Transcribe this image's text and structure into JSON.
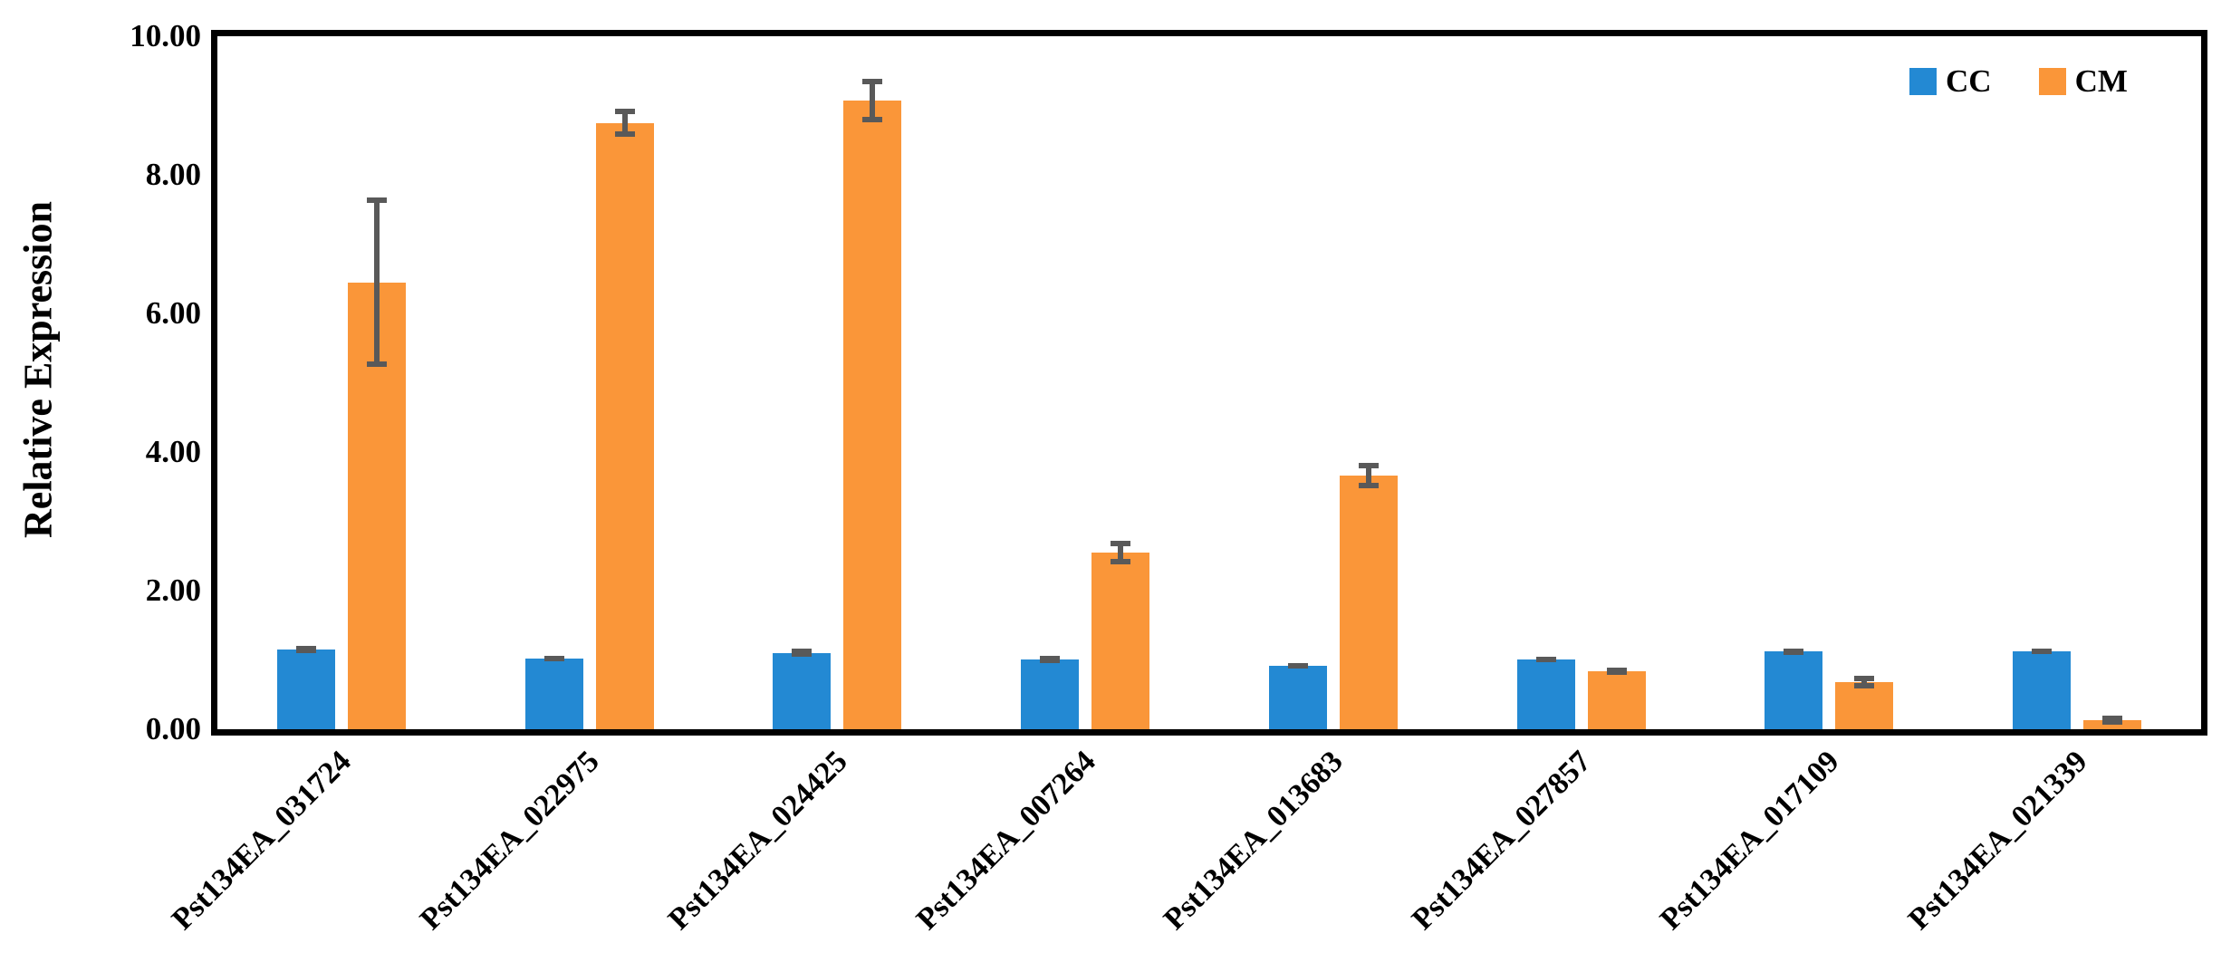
{
  "chart_data": {
    "type": "bar",
    "title": "",
    "xlabel": "",
    "ylabel": "Relative Expression",
    "ylim": [
      0,
      10
    ],
    "ytick_values": [
      0,
      2,
      4,
      6,
      8,
      10
    ],
    "ytick_labels": [
      "0.00",
      "2.00",
      "4.00",
      "6.00",
      "8.00",
      "10.00"
    ],
    "grid": false,
    "legend_position": "top-right-inside",
    "categories": [
      "Pst134EA_031724",
      "Pst134EA_022975",
      "Pst134EA_024425",
      "Pst134EA_007264",
      "Pst134EA_013683",
      "Pst134EA_027857",
      "Pst134EA_017109",
      "Pst134EA_021339"
    ],
    "series": [
      {
        "name": "CC",
        "color": "#2389D3",
        "values": [
          1.15,
          1.02,
          1.1,
          1.01,
          0.92,
          1.01,
          1.12,
          1.12
        ],
        "errors": [
          0.05,
          0.04,
          0.06,
          0.05,
          0.04,
          0.04,
          0.05,
          0.04
        ]
      },
      {
        "name": "CM",
        "color": "#FA9639",
        "values": [
          6.45,
          8.75,
          9.07,
          2.55,
          3.66,
          0.84,
          0.68,
          0.13
        ],
        "errors": [
          1.22,
          0.2,
          0.31,
          0.17,
          0.18,
          0.05,
          0.09,
          0.07
        ]
      }
    ],
    "error_bar_color": "#595959",
    "axis_color": "#000000"
  }
}
